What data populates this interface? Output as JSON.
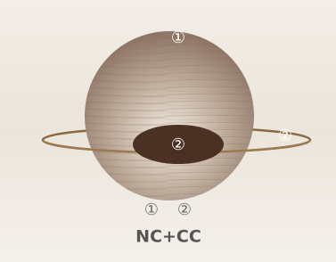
{
  "annotations": [
    "①",
    "②",
    "②",
    "①",
    "②"
  ],
  "caption": "NC+CC"
}
